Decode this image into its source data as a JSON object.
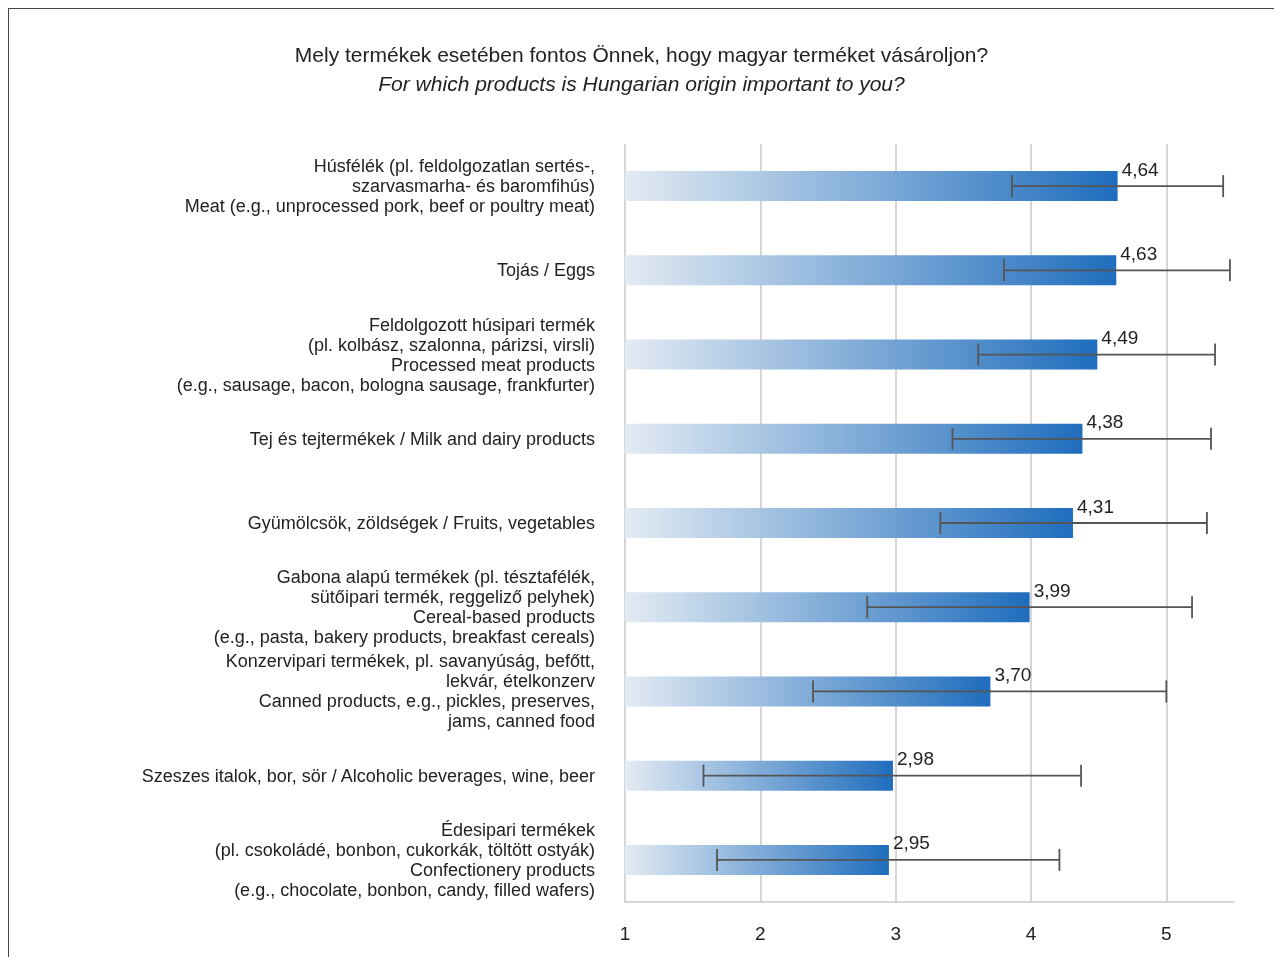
{
  "chart_data": {
    "type": "bar",
    "orientation": "horizontal",
    "title": "Mely termékek esetében fontos Önnek, hogy magyar terméket vásároljon?",
    "subtitle": "For which products is Hungarian origin important to you?",
    "categories": [
      "Húsfélék (pl. feldolgozatlan sertés-,\nszarvasmarha- és baromfihús)\nMeat (e.g., unprocessed pork, beef or poultry meat)",
      "Tojás / Eggs",
      "Feldolgozott húsipari termék\n(pl. kolbász, szalonna, párizsi, virsli)\nProcessed meat products\n(e.g., sausage, bacon, bologna sausage, frankfurter)",
      "Tej és tejtermékek / Milk and dairy products",
      "Gyümölcsök, zöldségek / Fruits, vegetables",
      "Gabona alapú termékek (pl. tésztafélék,\nsütőipari termék, reggeliző pelyhek)\nCereal-based products\n(e.g., pasta, bakery products, breakfast cereals)",
      "Konzervipari termékek, pl. savanyúság, befőtt,\nlekvár, ételkonzerv\nCanned products, e.g., pickles, preserves,\njams, canned food",
      "Szeszes italok, bor, sör / Alcoholic beverages, wine, beer",
      "Édesipari termékek\n(pl. csokoládé, bonbon, cukorkák, töltött ostyák)\nConfectionery products\n(e.g., chocolate, bonbon, candy, filled wafers)"
    ],
    "values": [
      4.64,
      4.63,
      4.49,
      4.38,
      4.31,
      3.99,
      3.7,
      2.98,
      2.95
    ],
    "value_labels": [
      "4,64",
      "4,63",
      "4,49",
      "4,38",
      "4,31",
      "3,99",
      "3,70",
      "2,98",
      "2,95"
    ],
    "errors": [
      [
        3.86,
        5.42
      ],
      [
        3.8,
        5.47
      ],
      [
        3.61,
        5.36
      ],
      [
        3.42,
        5.33
      ],
      [
        3.33,
        5.3
      ],
      [
        2.79,
        5.19
      ],
      [
        2.39,
        5.0
      ],
      [
        1.58,
        4.37
      ],
      [
        1.68,
        4.21
      ]
    ],
    "color": "#1f6dbd",
    "xlim": [
      1,
      5.5
    ],
    "xticks": [
      1,
      2,
      3,
      4,
      5
    ],
    "grid": "x"
  }
}
